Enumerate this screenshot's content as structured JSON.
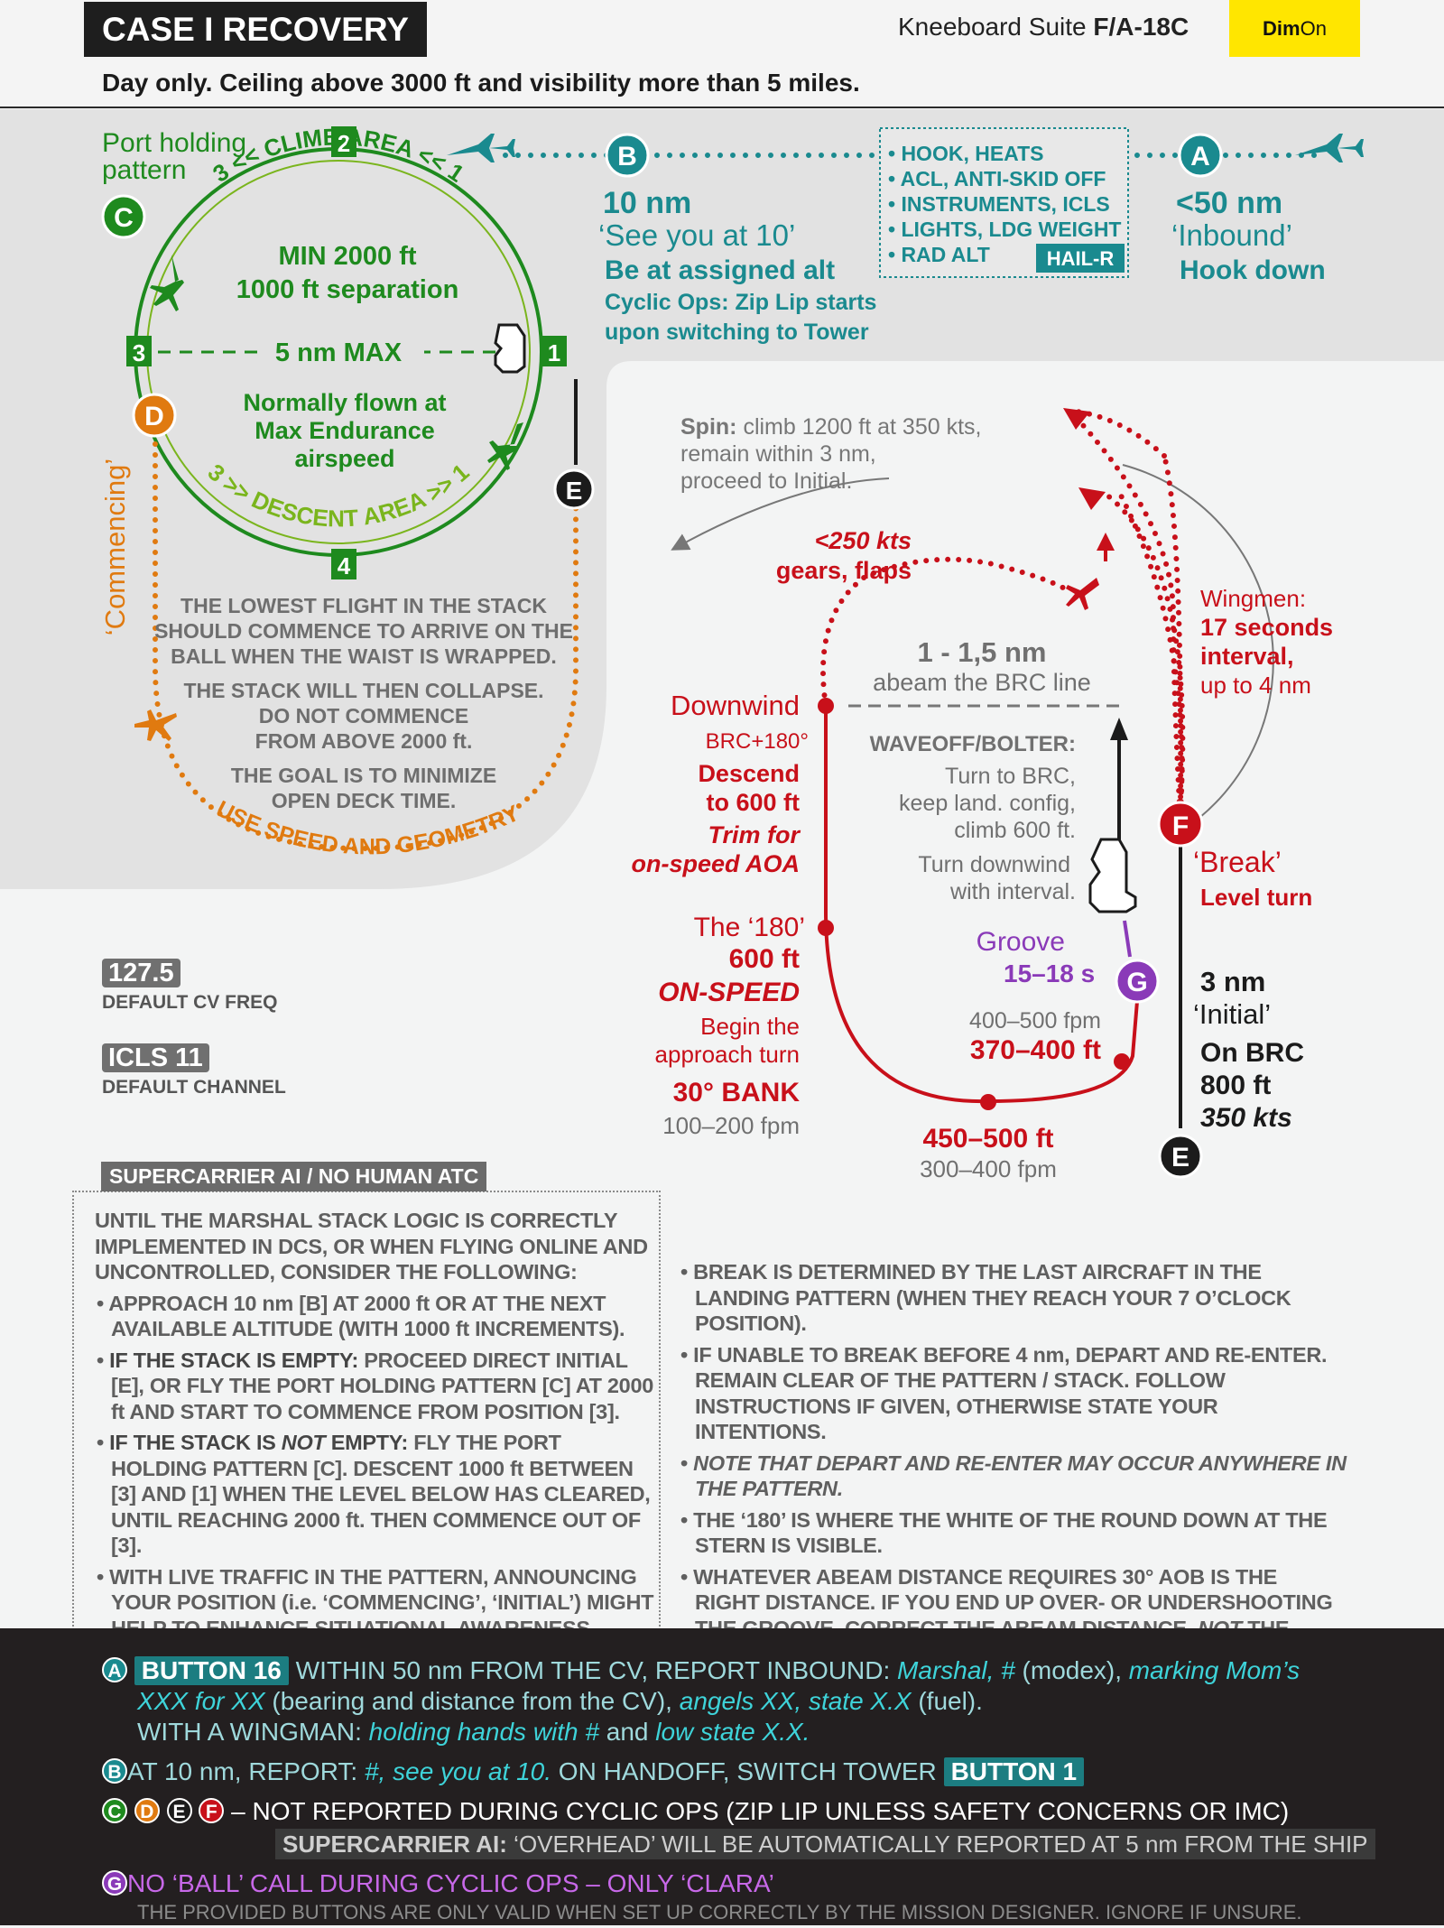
{
  "header": {
    "title": "CASE I RECOVERY",
    "suite": "Kneeboard Suite",
    "aircraft": "F/A-18C",
    "dim_a": "Dim",
    "dim_b": "On",
    "subtitle": "Day only. Ceiling above 3000 ft and visibility more than 5 miles."
  },
  "holding": {
    "title_1": "Port holding",
    "title_2": "pattern",
    "pos_2": "2",
    "pos_3": "3",
    "pos_1": "1",
    "pos_4": "4",
    "climb_area": "3 << CLIMB AREA << 1",
    "descent_area": "3 >> DESCENT AREA >> 1",
    "min_alt": "MIN 2000 ft",
    "separation": "1000 ft separation",
    "max_dist": "5 nm MAX",
    "flown_1": "Normally flown at",
    "flown_2": "Max Endurance",
    "flown_3": "airspeed",
    "commencing": "‘Commencing’",
    "note_1": "THE LOWEST FLIGHT IN THE STACK",
    "note_2": "SHOULD COMMENCE TO ARRIVE ON THE",
    "note_3": "BALL WHEN THE WAIST IS WRAPPED.",
    "note_4": "THE STACK WILL THEN COLLAPSE.",
    "note_5": "DO NOT COMMENCE",
    "note_6": "FROM ABOVE 2000 ft.",
    "note_7": "THE GOAL IS TO MINIMIZE",
    "note_8": "OPEN DECK TIME.",
    "use_speed": "USE SPEED AND GEOMETRY"
  },
  "markers": {
    "A": "A",
    "B": "B",
    "C": "C",
    "D": "D",
    "E": "E",
    "F": "F",
    "G": "G"
  },
  "inbound": {
    "b_dist": "10 nm",
    "b_call": "‘See you at 10’",
    "b_alt": "Be at assigned alt",
    "b_cyclic_1": "Cyclic Ops: Zip Lip starts",
    "b_cyclic_2": "upon switching to Tower",
    "checklist": [
      "• HOOK, HEATS",
      "• ACL, ANTI-SKID OFF",
      "• INSTRUMENTS, ICLS",
      "• LIGHTS, LDG WEIGHT",
      "• RAD ALT"
    ],
    "hailr": "HAIL-R",
    "a_dist": "<50 nm",
    "a_call": "‘Inbound’",
    "a_hook": "Hook down"
  },
  "pattern": {
    "spin_bold": "Spin:",
    "spin_1": " climb 1200 ft at 350 kts,",
    "spin_2": "remain within 3 nm,",
    "spin_3": "proceed to Initial.",
    "gear_1": "<250 kts",
    "gear_2": "gears, flaps",
    "wing_1": "Wingmen:",
    "wing_2": "17 seconds",
    "wing_3": "interval,",
    "wing_4": "up to 4 nm",
    "abeam_1": "1 - 1,5 nm",
    "abeam_2": "abeam the BRC line",
    "downwind": "Downwind",
    "brc180": "BRC+180°",
    "descend_1": "Descend",
    "descend_2": "to 600 ft",
    "trim_1": "Trim for",
    "trim_2": "on-speed AOA",
    "waveoff": "WAVEOFF/BOLTER:",
    "wo_1": "Turn to BRC,",
    "wo_2": "keep land. config,",
    "wo_3": "climb 600 ft.",
    "wo_4": "Turn downwind",
    "wo_5": "with interval.",
    "break": "‘Break’",
    "level": "Level turn",
    "the180": "The ‘180’",
    "ft600": "600 ft",
    "onspeed": "ON-SPEED",
    "begin_1": "Begin the",
    "begin_2": "approach turn",
    "bank": "30° BANK",
    "fpm_a": "100–200 fpm",
    "groove": "Groove",
    "groove_t": "15–18 s",
    "fpm_b": "400–500 fpm",
    "alt_b": "370–400 ft",
    "alt_c": "450–500 ft",
    "fpm_c": "300–400 fpm",
    "init_1": "3 nm",
    "init_2": "‘Initial’",
    "init_3": "On BRC",
    "init_4": "800 ft",
    "init_5": "350 kts"
  },
  "freq": {
    "cv": "127.5",
    "cv_label": "DEFAULT CV FREQ",
    "icls": "ICLS 11",
    "icls_label": "DEFAULT CHANNEL"
  },
  "ai_box": {
    "tag": "SUPERCARRIER AI / NO HUMAN ATC",
    "intro": "UNTIL THE MARSHAL STACK LOGIC IS CORRECTLY IMPLEMENTED IN DCS, OR WHEN FLYING ONLINE AND UNCONTROLLED, CONSIDER THE FOLLOWING:",
    "b1": "APPROACH 10 nm [B] AT 2000 ft OR AT THE NEXT AVAILABLE ALTITUDE (WITH 1000 ft INCREMENTS).",
    "b2_bold": "IF THE STACK IS EMPTY:",
    "b2": " PROCEED DIRECT INITIAL [E], OR FLY THE PORT HOLDING PATTERN [C] AT 2000 ft AND START TO COMMENCE FROM POSITION [3].",
    "b3_bold_a": "IF THE STACK IS ",
    "b3_not": "NOT",
    "b3_bold_b": " EMPTY:",
    "b3": " FLY THE PORT HOLDING PATTERN [C]. DESCENT 1000 ft BETWEEN [3] AND [1] WHEN THE LEVEL BELOW HAS CLEARED, UNTIL REACHING 2000 ft. THEN COMMENCE OUT OF [3].",
    "b4": "WITH LIVE TRAFFIC IN THE PATTERN, ANNOUNCING YOUR POSITION (i.e. ‘COMMENCING’, ‘INITIAL’) MIGHT HELP TO ENHANCE SITUATIONAL AWARENESS."
  },
  "right_notes": {
    "n1": "BREAK IS DETERMINED BY THE LAST AIRCRAFT IN THE LANDING PATTERN (WHEN THEY REACH YOUR 7 O’CLOCK POSITION).",
    "n2": "IF UNABLE TO BREAK BEFORE 4 nm, DEPART AND RE-ENTER. REMAIN CLEAR OF THE PATTERN / STACK. FOLLOW INSTRUCTIONS IF GIVEN, OTHERWISE STATE YOUR INTENTIONS.",
    "n3": "NOTE THAT DEPART AND RE-ENTER MAY OCCUR ANYWHERE IN THE PATTERN.",
    "n4": "THE ‘180’ IS WHERE THE WHITE OF THE ROUND DOWN AT THE STERN IS VISIBLE.",
    "n5": "WHATEVER ABEAM DISTANCE REQUIRES 30° AOB IS THE RIGHT DISTANCE. IF YOU END UP OVER- OR UNDERSHOOTING THE GROOVE, CORRECT THE ABEAM DISTANCE,",
    "n5_not": "NOT",
    "n5_end": " THE BANK ANGLE, ON YOUR NEXT PATTERN."
  },
  "footer": {
    "btn16": "BUTTON 16",
    "a_1": " WITHIN 50 nm FROM THE CV, REPORT INBOUND: ",
    "a_2": "Marshal, #",
    "a_3": " (modex), ",
    "a_4": "marking Mom’s",
    "a_5": "XXX for XX",
    "a_6": " (bearing and distance from the CV), ",
    "a_7": "angels XX, state X.X",
    "a_8": " (fuel).",
    "a_9": "WITH A WINGMAN: ",
    "a_10": "holding hands with #",
    "a_11": " and ",
    "a_12": "low state X.X.",
    "b_1": "AT 10 nm, REPORT: ",
    "b_2": "#, see you at 10.",
    "b_3": " ON HANDOFF, SWITCH TOWER ",
    "btn1": "BUTTON 1",
    "cdef": " – NOT REPORTED DURING CYCLIC OPS (ZIP LIP UNLESS SAFETY CONCERNS OR IMC)",
    "ai_bold": "SUPERCARRIER AI:",
    "ai_text": " ‘OVERHEAD’ WILL BE AUTOMATICALLY REPORTED AT 5 nm FROM THE SHIP",
    "g_text": "NO ‘BALL’ CALL DURING CYCLIC OPS – ONLY ‘CLARA’",
    "disclaimer": "THE PROVIDED BUTTONS ARE ONLY VALID WHEN SET UP CORRECTLY BY THE MISSION DESIGNER. IGNORE IF UNSURE."
  },
  "colors": {
    "teal": "#1a8a8f",
    "green": "#1e8a1e",
    "lightgreen": "#7ab51d",
    "orange": "#e07a10",
    "red": "#c8101a",
    "purple": "#8a3ab8",
    "grey": "#707070"
  }
}
